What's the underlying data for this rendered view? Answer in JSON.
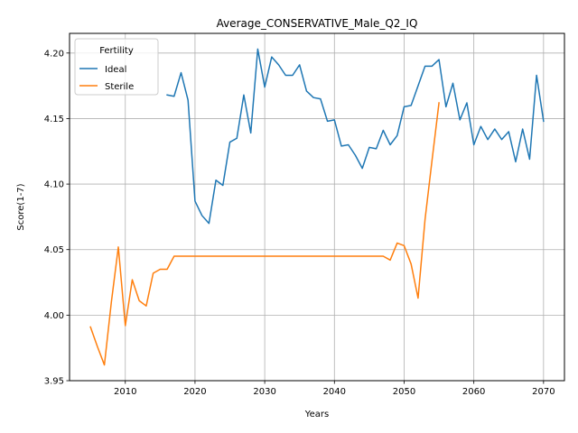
{
  "chart_data": {
    "type": "line",
    "title": "Average_CONSERVATIVE_Male_Q2_IQ",
    "xlabel": "Years",
    "ylabel": "Score(1-7)",
    "xlim": [
      2002,
      2073
    ],
    "ylim": [
      3.95,
      4.215
    ],
    "xticks": [
      2010,
      2020,
      2030,
      2040,
      2050,
      2060,
      2070
    ],
    "xtick_labels": [
      "2010",
      "2020",
      "2030",
      "2040",
      "2050",
      "2060",
      "2070"
    ],
    "yticks": [
      3.95,
      4.0,
      4.05,
      4.1,
      4.15,
      4.2
    ],
    "ytick_labels": [
      "3.95",
      "4.00",
      "4.05",
      "4.10",
      "4.15",
      "4.20"
    ],
    "grid": true,
    "legend": {
      "title": "Fertility",
      "position": "top-left"
    },
    "series": [
      {
        "name": "Ideal",
        "color": "#1f77b4",
        "x": [
          2016,
          2017,
          2018,
          2019,
          2020,
          2021,
          2022,
          2023,
          2024,
          2025,
          2026,
          2027,
          2028,
          2029,
          2030,
          2031,
          2032,
          2033,
          2034,
          2035,
          2036,
          2037,
          2038,
          2039,
          2040,
          2041,
          2042,
          2043,
          2044,
          2045,
          2046,
          2047,
          2048,
          2049,
          2050,
          2051,
          2052,
          2053,
          2054,
          2055,
          2056,
          2057,
          2058,
          2059,
          2060,
          2061,
          2062,
          2063,
          2064,
          2065,
          2066,
          2067,
          2068,
          2069,
          2070
        ],
        "values": [
          4.168,
          4.167,
          4.185,
          4.164,
          4.087,
          4.076,
          4.07,
          4.103,
          4.099,
          4.132,
          4.135,
          4.168,
          4.139,
          4.203,
          4.174,
          4.197,
          4.191,
          4.183,
          4.183,
          4.191,
          4.171,
          4.166,
          4.165,
          4.148,
          4.149,
          4.129,
          4.13,
          4.122,
          4.112,
          4.128,
          4.127,
          4.141,
          4.13,
          4.137,
          4.159,
          4.16,
          4.175,
          4.19,
          4.19,
          4.195,
          4.159,
          4.177,
          4.149,
          4.162,
          4.13,
          4.144,
          4.134,
          4.142,
          4.134,
          4.14,
          4.117,
          4.142,
          4.119,
          4.183,
          4.148
        ]
      },
      {
        "name": "Sterile",
        "color": "#ff7f0e",
        "x": [
          2005,
          2006,
          2007,
          2008,
          2009,
          2010,
          2011,
          2012,
          2013,
          2014,
          2015,
          2016,
          2017,
          2018,
          2019,
          2020,
          2021,
          2022,
          2023,
          2024,
          2025,
          2026,
          2027,
          2028,
          2029,
          2030,
          2031,
          2032,
          2033,
          2034,
          2035,
          2036,
          2037,
          2038,
          2039,
          2040,
          2041,
          2042,
          2043,
          2044,
          2045,
          2046,
          2047,
          2048,
          2049,
          2050,
          2051,
          2052,
          2053,
          2054,
          2055
        ],
        "values": [
          3.991,
          3.976,
          3.962,
          4.01,
          4.052,
          3.992,
          4.027,
          4.011,
          4.007,
          4.032,
          4.035,
          4.035,
          4.045,
          4.045,
          4.045,
          4.045,
          4.045,
          4.045,
          4.045,
          4.045,
          4.045,
          4.045,
          4.045,
          4.045,
          4.045,
          4.045,
          4.045,
          4.045,
          4.045,
          4.045,
          4.045,
          4.045,
          4.045,
          4.045,
          4.045,
          4.045,
          4.045,
          4.045,
          4.045,
          4.045,
          4.045,
          4.045,
          4.045,
          4.042,
          4.055,
          4.053,
          4.039,
          4.013,
          4.073,
          4.118,
          4.162
        ]
      }
    ]
  }
}
